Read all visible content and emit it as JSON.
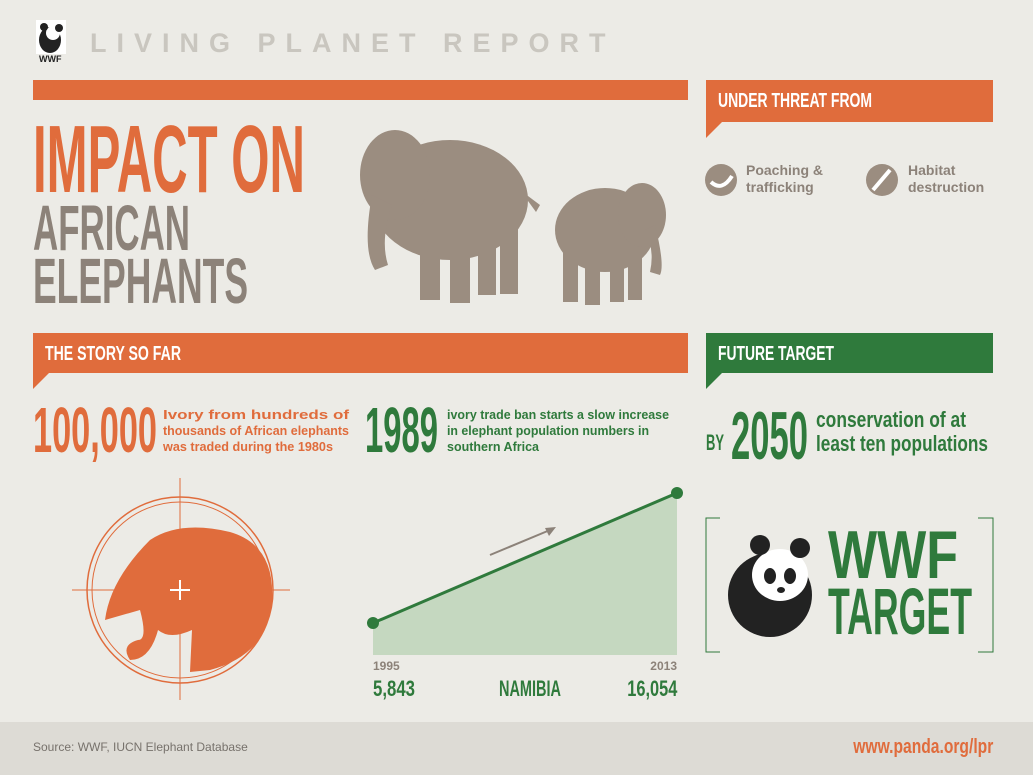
{
  "header": {
    "logo_text": "WWF",
    "title": "LIVING PLANET REPORT"
  },
  "title": {
    "lines": [
      "IMPACT ON",
      "AFRICAN",
      "ELEPHANTS"
    ]
  },
  "threats": {
    "heading": "UNDER THREAT FROM",
    "items": [
      {
        "lines": [
          "Poaching &",
          "trafficking"
        ]
      },
      {
        "lines": [
          "Habitat",
          "destruction"
        ]
      }
    ]
  },
  "story": {
    "heading": "THE STORY SO FAR",
    "facts": [
      {
        "number": "100,000",
        "lines": [
          "Ivory from hundreds of",
          "thousands of African elephants",
          "was traded during the 1980s"
        ]
      },
      {
        "number": "1989",
        "lines": [
          "ivory trade ban starts a slow increase",
          "in elephant population numbers in",
          "southern Africa"
        ]
      }
    ]
  },
  "namibia": {
    "start_year": "1995",
    "start_value": "5,843",
    "label": "NAMIBIA",
    "end_year": "2013",
    "end_value": "16,054"
  },
  "future": {
    "heading": "FUTURE TARGET",
    "prefix": "BY",
    "year": "2050",
    "lines": [
      "conservation of at",
      "least ten populations"
    ]
  },
  "target": {
    "lines": [
      "WWF",
      "TARGET"
    ]
  },
  "footer": {
    "source": "Source: WWF, IUCN Elephant Database",
    "url": "www.panda.org/lpr"
  }
}
